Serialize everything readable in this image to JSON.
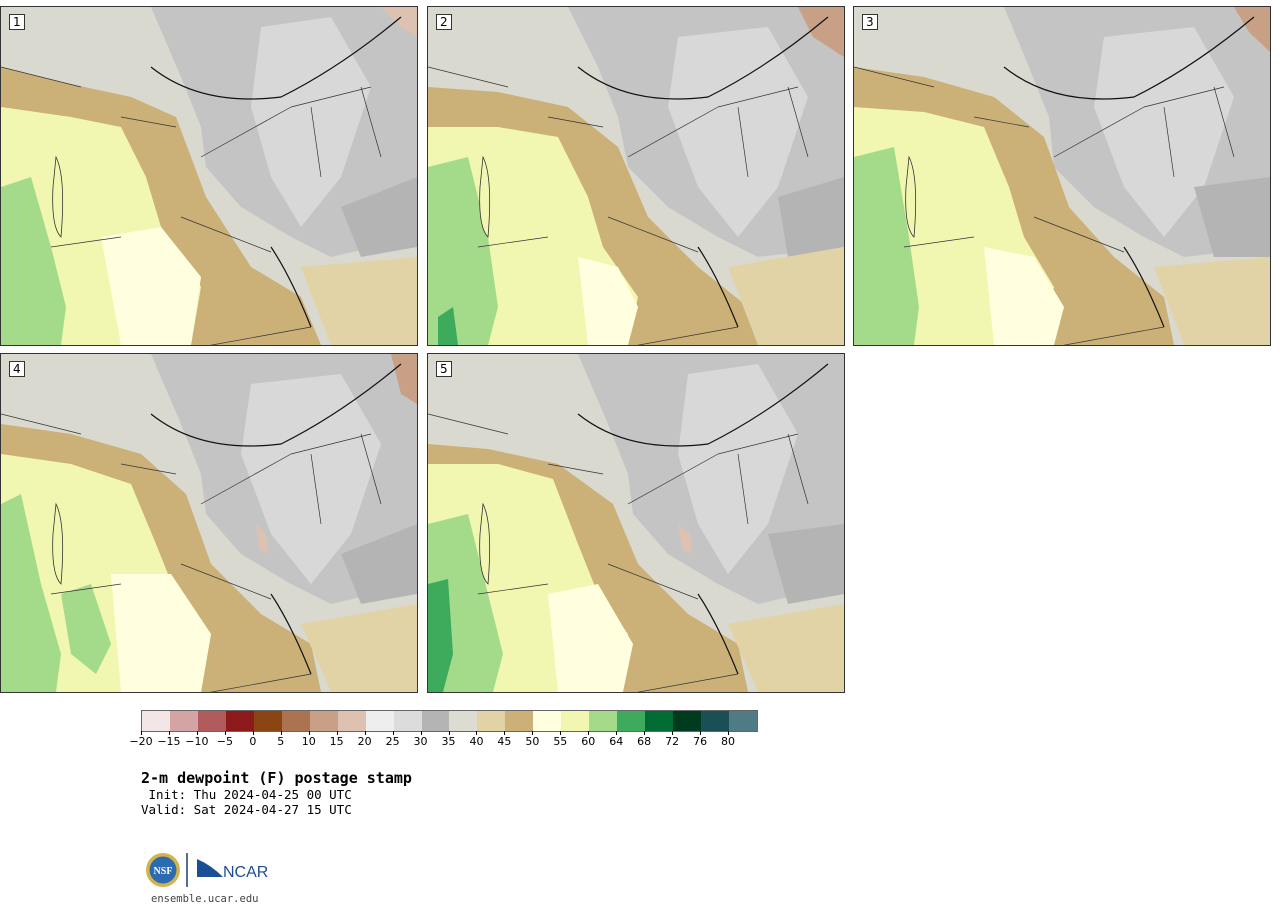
{
  "panels": [
    {
      "label": "1"
    },
    {
      "label": "2"
    },
    {
      "label": "3"
    },
    {
      "label": "4"
    },
    {
      "label": "5"
    }
  ],
  "colorbar": {
    "colors": [
      "#f2e6e6",
      "#d4a3a3",
      "#b05c5c",
      "#8c1a1a",
      "#8b4513",
      "#ac7350",
      "#c7a085",
      "#ddc2b1",
      "#eeeeee",
      "#dcdcdc",
      "#b4b4b4",
      "#dcdcd2",
      "#e2d3a7",
      "#cbb077",
      "#ffffe0",
      "#f1f7b0",
      "#a4db8a",
      "#3eaa5c",
      "#006b32",
      "#003b20",
      "#1a4f55",
      "#4f7c84"
    ],
    "ticks": [
      "−20",
      "−15",
      "−10",
      "−5",
      "0",
      "5",
      "10",
      "15",
      "20",
      "25",
      "30",
      "35",
      "40",
      "45",
      "50",
      "55",
      "60",
      "64",
      "68",
      "72",
      "76",
      "80"
    ]
  },
  "title": "2-m dewpoint (F) postage stamp",
  "init": " Init: Thu 2024-04-25 00 UTC",
  "valid": "Valid: Sat 2024-04-27 15 UTC",
  "logo": {
    "nsf_text": "NSF",
    "ncar_text": "NCAR"
  },
  "site": "ensemble.ucar.edu"
}
